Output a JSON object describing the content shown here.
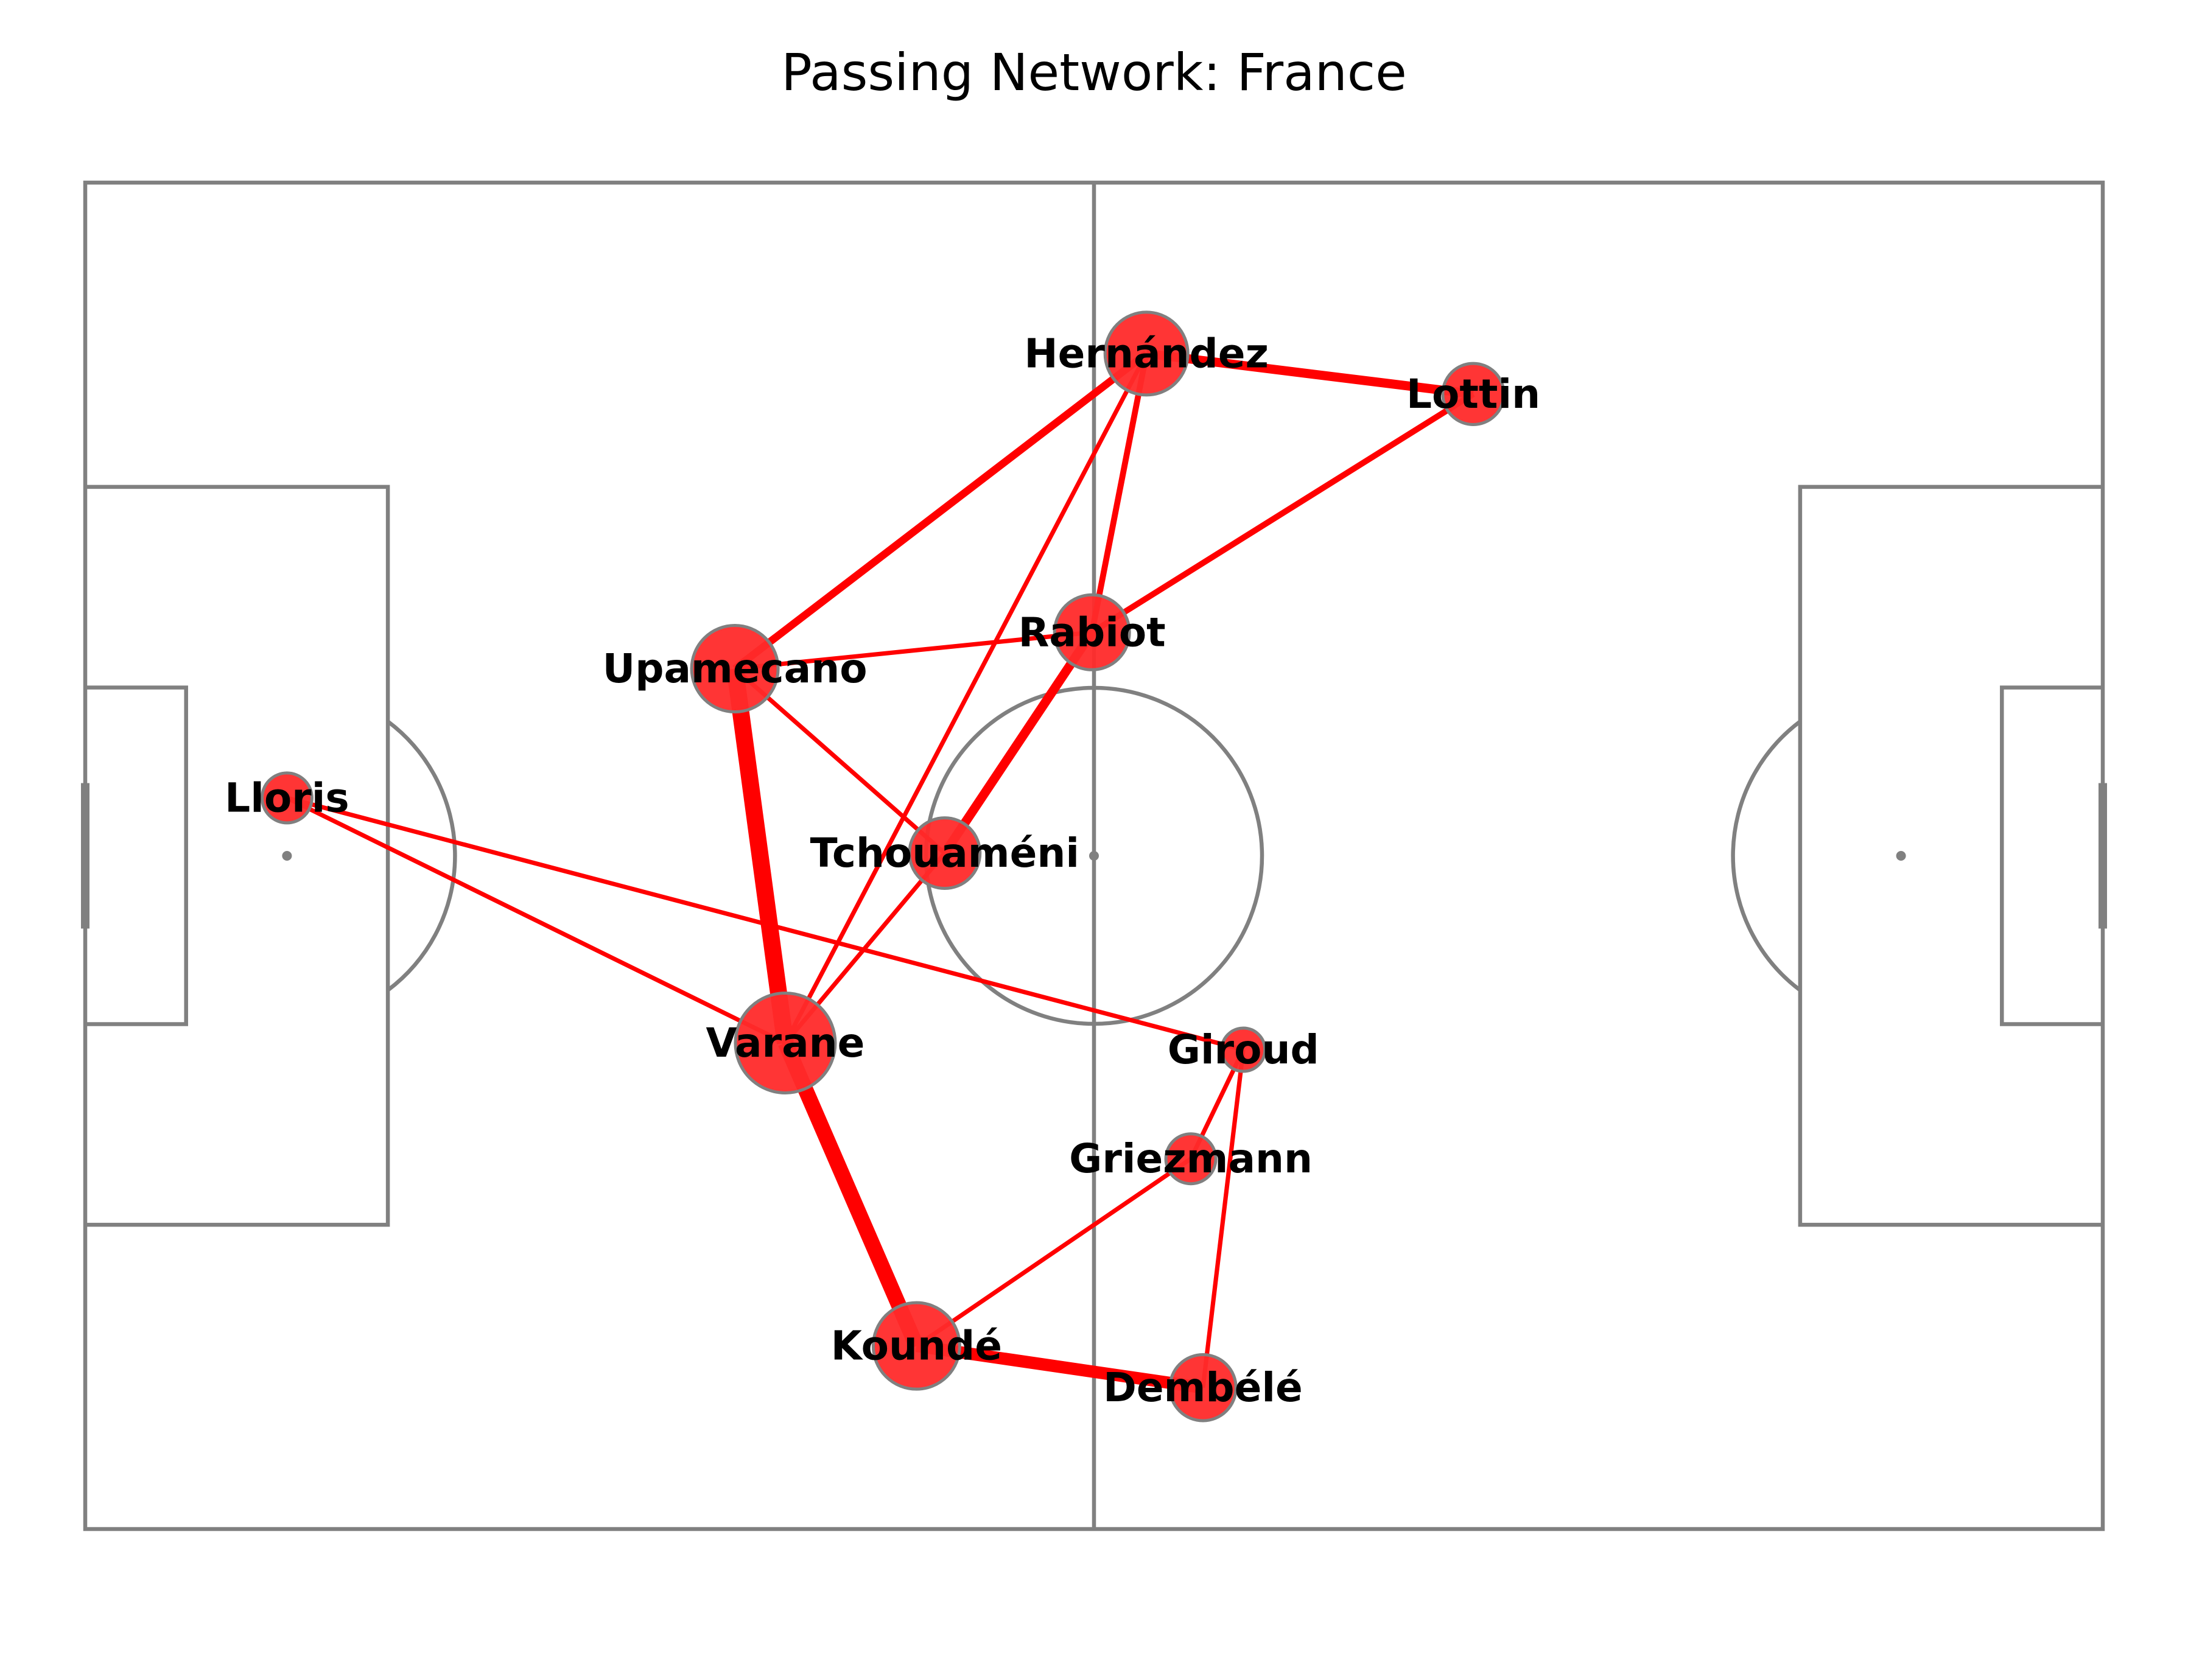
{
  "title": "Passing Network: France",
  "colors": {
    "pitch_lines": "#808080",
    "edge": "#ff0000",
    "node_fill": "#ff2a2a",
    "node_stroke": "#808080",
    "label": "#000000"
  },
  "players": [
    {
      "id": "lloris",
      "name": "Lloris",
      "x": 10,
      "y": 45.7,
      "passes": 4
    },
    {
      "id": "upamecano",
      "name": "Upamecano",
      "x": 32.2,
      "y": 36.1,
      "passes": 12
    },
    {
      "id": "varane",
      "name": "Varane",
      "x": 34.7,
      "y": 63.9,
      "passes": 16
    },
    {
      "id": "tchouameni",
      "name": "Tchouaméni",
      "x": 42.6,
      "y": 49.8,
      "passes": 8
    },
    {
      "id": "rabiot",
      "name": "Rabiot",
      "x": 49.9,
      "y": 33.4,
      "passes": 9
    },
    {
      "id": "hernandez",
      "name": "Hernández",
      "x": 52.6,
      "y": 12.7,
      "passes": 11
    },
    {
      "id": "lottin",
      "name": "Lottin",
      "x": 68.8,
      "y": 15.7,
      "passes": 6
    },
    {
      "id": "giroud",
      "name": "Giroud",
      "x": 57.4,
      "y": 64.4,
      "passes": 3
    },
    {
      "id": "griezmann",
      "name": "Griezmann",
      "x": 54.8,
      "y": 72.5,
      "passes": 4
    },
    {
      "id": "kounde",
      "name": "Koundé",
      "x": 41.2,
      "y": 86.4,
      "passes": 12
    },
    {
      "id": "dembele",
      "name": "Dembélé",
      "x": 55.4,
      "y": 89.5,
      "passes": 7
    }
  ],
  "passes": [
    {
      "from": "upamecano",
      "to": "varane",
      "count": 10
    },
    {
      "from": "varane",
      "to": "kounde",
      "count": 9
    },
    {
      "from": "kounde",
      "to": "dembele",
      "count": 7
    },
    {
      "from": "tchouameni",
      "to": "rabiot",
      "count": 5
    },
    {
      "from": "hernandez",
      "to": "lottin",
      "count": 5
    },
    {
      "from": "upamecano",
      "to": "hernandez",
      "count": 4
    },
    {
      "from": "rabiot",
      "to": "lottin",
      "count": 3
    },
    {
      "from": "rabiot",
      "to": "hernandez",
      "count": 3
    },
    {
      "from": "lloris",
      "to": "giroud",
      "count": 2
    },
    {
      "from": "lloris",
      "to": "varane",
      "count": 2
    },
    {
      "from": "upamecano",
      "to": "rabiot",
      "count": 2
    },
    {
      "from": "upamecano",
      "to": "tchouameni",
      "count": 2
    },
    {
      "from": "varane",
      "to": "hernandez",
      "count": 2
    },
    {
      "from": "varane",
      "to": "tchouameni",
      "count": 2
    },
    {
      "from": "griezmann",
      "to": "giroud",
      "count": 2
    },
    {
      "from": "griezmann",
      "to": "kounde",
      "count": 2
    },
    {
      "from": "giroud",
      "to": "dembele",
      "count": 2
    }
  ]
}
